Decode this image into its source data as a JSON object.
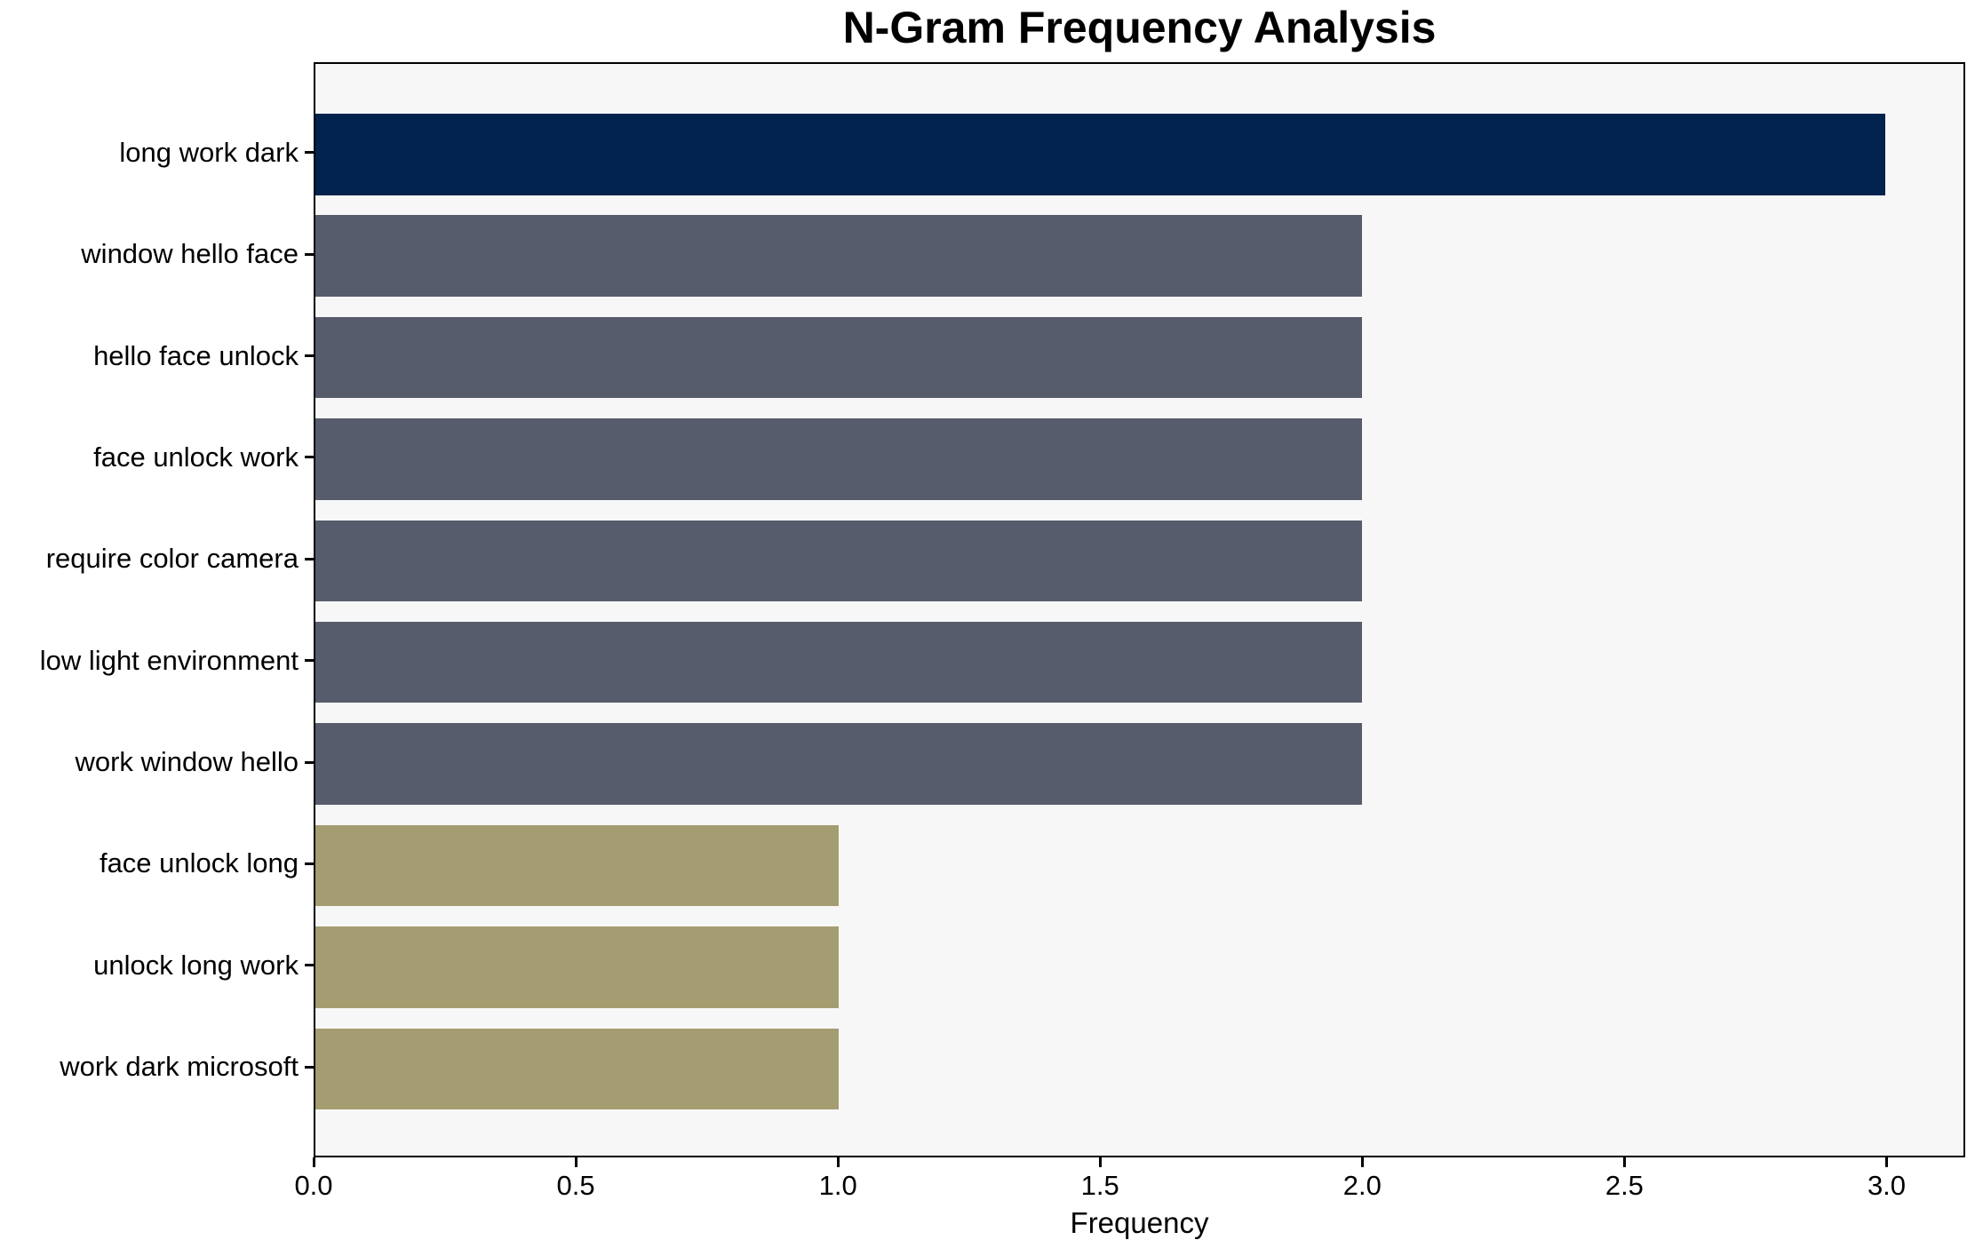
{
  "figure": {
    "title": "N-Gram Frequency Analysis",
    "xlabel": "Frequency"
  },
  "chart_data": {
    "type": "bar",
    "orientation": "horizontal",
    "title": "N-Gram Frequency Analysis",
    "xlabel": "Frequency",
    "ylabel": "",
    "categories": [
      "long work dark",
      "window hello face",
      "hello face unlock",
      "face unlock work",
      "require color camera",
      "low light environment",
      "work window hello",
      "face unlock long",
      "unlock long work",
      "work dark microsoft"
    ],
    "values": [
      3,
      2,
      2,
      2,
      2,
      2,
      2,
      1,
      1,
      1
    ],
    "bar_colors": [
      "#02234d",
      "#565c6b",
      "#565c6b",
      "#565c6b",
      "#565c6b",
      "#565c6b",
      "#565c6b",
      "#a59d72",
      "#a59d72",
      "#a59d72"
    ],
    "xlim": [
      0,
      3.15
    ],
    "x_ticks": [
      0,
      0.5,
      1,
      1.5,
      2,
      2.5,
      3
    ],
    "x_tick_labels": [
      "0.0",
      "0.5",
      "1.0",
      "1.5",
      "2.0",
      "2.5",
      "3.0"
    ],
    "grid": false,
    "legend": false,
    "colors": {
      "plot_bg": "#f7f7f7",
      "figure_bg": "#ffffff",
      "spine": "#000000",
      "text": "#000000"
    }
  }
}
